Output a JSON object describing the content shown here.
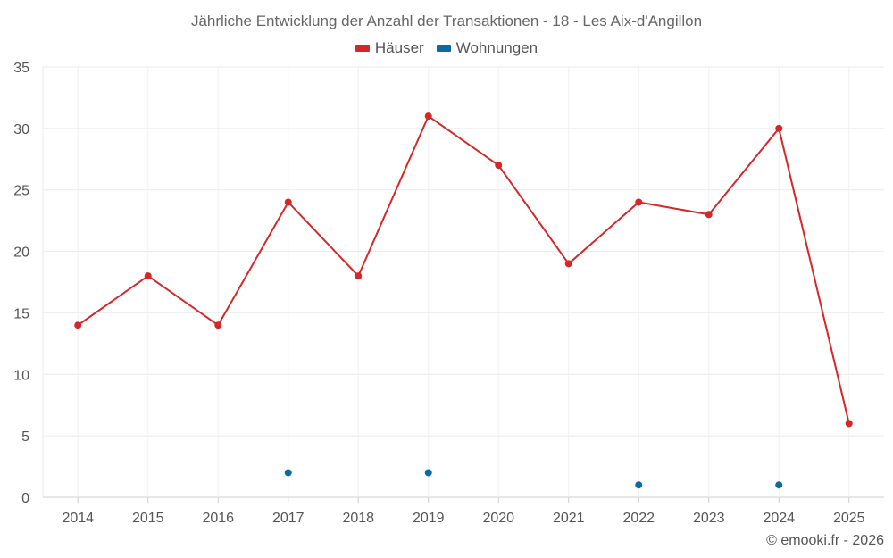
{
  "chart_data": {
    "type": "line",
    "title": "Jährliche Entwicklung der Anzahl der Transaktionen - 18 - Les Aix-d'Angillon",
    "categories": [
      "2014",
      "2015",
      "2016",
      "2017",
      "2018",
      "2019",
      "2020",
      "2021",
      "2022",
      "2023",
      "2024",
      "2025"
    ],
    "series": [
      {
        "name": "Häuser",
        "color": "#d62728",
        "values": [
          14,
          18,
          14,
          24,
          18,
          31,
          27,
          19,
          24,
          23,
          30,
          6
        ]
      },
      {
        "name": "Wohnungen",
        "color": "#0b6aa2",
        "values": [
          null,
          null,
          null,
          2,
          null,
          2,
          null,
          null,
          1,
          null,
          1,
          null
        ]
      }
    ],
    "ylim": [
      0,
      35
    ],
    "yticks": [
      0,
      5,
      10,
      15,
      20,
      25,
      30,
      35
    ],
    "grid": true,
    "legend": "top-center"
  },
  "credit": "© emooki.fr - 2026"
}
